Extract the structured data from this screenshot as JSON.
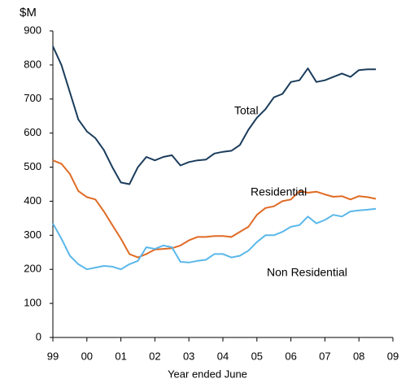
{
  "chart_data": {
    "type": "line",
    "y_unit_label": "$M",
    "x_label": "Year ended June",
    "x": [
      0,
      0.25,
      0.5,
      0.75,
      1,
      1.25,
      1.5,
      1.75,
      2,
      2.25,
      2.5,
      2.75,
      3,
      3.25,
      3.5,
      3.75,
      4,
      4.25,
      4.5,
      4.75,
      5,
      5.25,
      5.5,
      5.75,
      6,
      6.25,
      6.5,
      6.75,
      7,
      7.25,
      7.5,
      7.75,
      8,
      8.25,
      8.5,
      8.75,
      9,
      9.25,
      9.5
    ],
    "series": [
      {
        "name": "Total",
        "color": "#1b3c5c",
        "values": [
          855,
          800,
          720,
          640,
          605,
          585,
          550,
          500,
          455,
          450,
          500,
          530,
          520,
          530,
          535,
          505,
          515,
          520,
          522,
          540,
          545,
          548,
          565,
          610,
          645,
          670,
          705,
          715,
          750,
          755,
          790,
          750,
          755,
          765,
          775,
          765,
          785,
          787,
          787
        ]
      },
      {
        "name": "Residential",
        "color": "#e06b25",
        "values": [
          520,
          510,
          480,
          430,
          412,
          405,
          370,
          330,
          290,
          245,
          235,
          245,
          258,
          260,
          262,
          270,
          285,
          295,
          295,
          298,
          298,
          295,
          310,
          325,
          360,
          380,
          385,
          400,
          405,
          430,
          425,
          428,
          420,
          413,
          415,
          405,
          415,
          412,
          407
        ]
      },
      {
        "name": "Non Residential",
        "color": "#5bb8ea",
        "values": [
          335,
          290,
          240,
          215,
          200,
          205,
          210,
          208,
          200,
          215,
          225,
          265,
          260,
          270,
          265,
          222,
          220,
          225,
          228,
          245,
          245,
          235,
          240,
          255,
          280,
          300,
          300,
          310,
          325,
          330,
          355,
          335,
          345,
          360,
          355,
          370,
          373,
          375,
          378
        ]
      }
    ],
    "xlim": [
      0,
      10
    ],
    "xticks": [
      {
        "value": 0,
        "label": "99"
      },
      {
        "value": 1,
        "label": "00"
      },
      {
        "value": 2,
        "label": "01"
      },
      {
        "value": 3,
        "label": "02"
      },
      {
        "value": 4,
        "label": "03"
      },
      {
        "value": 5,
        "label": "04"
      },
      {
        "value": 6,
        "label": "05"
      },
      {
        "value": 7,
        "label": "06"
      },
      {
        "value": 8,
        "label": "07"
      },
      {
        "value": 9,
        "label": "08"
      },
      {
        "value": 10,
        "label": "09"
      }
    ],
    "ylim": [
      0,
      900
    ],
    "yticks": [
      0,
      100,
      200,
      300,
      400,
      500,
      600,
      700,
      800,
      900
    ],
    "grid": false
  }
}
